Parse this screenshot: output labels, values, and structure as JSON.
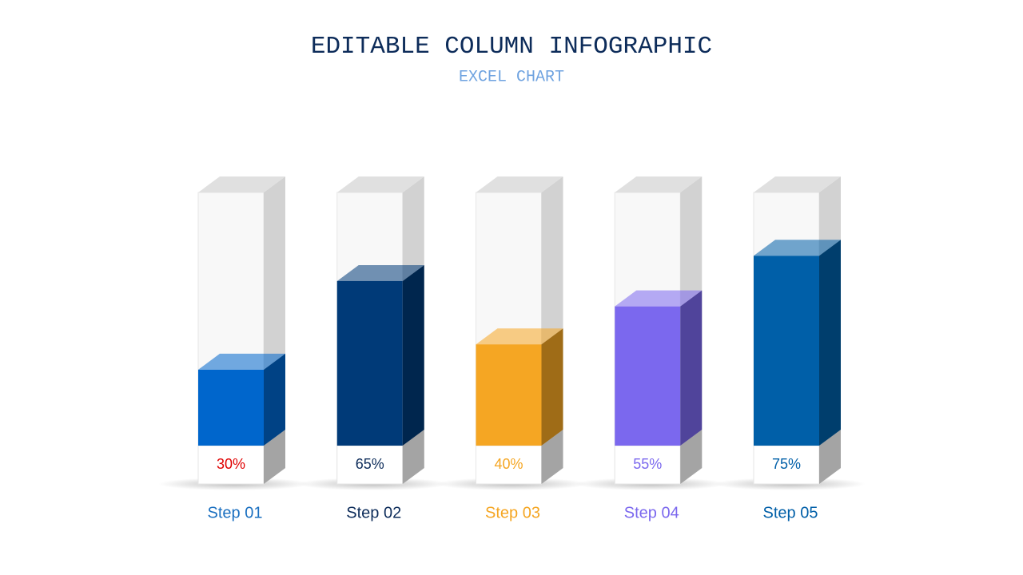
{
  "chart_data": {
    "type": "bar3d",
    "title": "EDITABLE COLUMN INFOGRAPHIC",
    "subtitle": "EXCEL CHART",
    "categories": [
      "Step 01",
      "Step 02",
      "Step 03",
      "Step 04",
      "Step 05"
    ],
    "values": [
      30,
      65,
      40,
      55,
      75
    ],
    "value_labels": [
      "30%",
      "65%",
      "40%",
      "55%",
      "75%"
    ],
    "colors": [
      "#0066cc",
      "#003a78",
      "#f5a623",
      "#7b68ee",
      "#005fa8"
    ],
    "category_label_colors": [
      "#1a6fc0",
      "#0d2c5a",
      "#f5a623",
      "#7b68ee",
      "#005fa8"
    ],
    "value_label_colors": [
      "#e00000",
      "#0d2c5a",
      "#f5a623",
      "#7b68ee",
      "#005fa8"
    ],
    "ylim": [
      0,
      100
    ]
  }
}
